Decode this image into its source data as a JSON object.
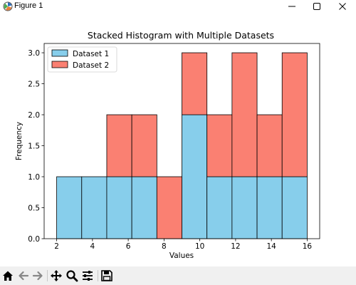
{
  "window": {
    "title": "Figure 1"
  },
  "toolbar": {
    "buttons": [
      {
        "name": "home-icon"
      },
      {
        "name": "back-icon"
      },
      {
        "name": "forward-icon"
      },
      {
        "name": "pan-icon"
      },
      {
        "name": "zoom-icon"
      },
      {
        "name": "configure-subplots-icon"
      },
      {
        "name": "save-icon"
      }
    ]
  },
  "chart_data": {
    "type": "bar",
    "stacked": true,
    "title": "Stacked Histogram with Multiple Datasets",
    "xlabel": "Values",
    "ylabel": "Frequency",
    "bin_edges": [
      2,
      3.4,
      4.8,
      6.2,
      7.6,
      9,
      10.4,
      11.8,
      13.2,
      14.6,
      16
    ],
    "series": [
      {
        "name": "Dataset 1",
        "color": "#87ceeb",
        "values": [
          1,
          1,
          1,
          1,
          0,
          2,
          1,
          1,
          1,
          1
        ]
      },
      {
        "name": "Dataset 2",
        "color": "#fa8072",
        "values": [
          0,
          0,
          1,
          1,
          1,
          1,
          1,
          2,
          1,
          2
        ]
      }
    ],
    "xlim": [
      1.3,
      16.7
    ],
    "ylim": [
      0,
      3.15
    ],
    "xticks": [
      2,
      4,
      6,
      8,
      10,
      12,
      14,
      16
    ],
    "yticks": [
      "0.0",
      "0.5",
      "1.0",
      "1.5",
      "2.0",
      "2.5",
      "3.0"
    ],
    "legend": "top-left",
    "grid": false
  }
}
